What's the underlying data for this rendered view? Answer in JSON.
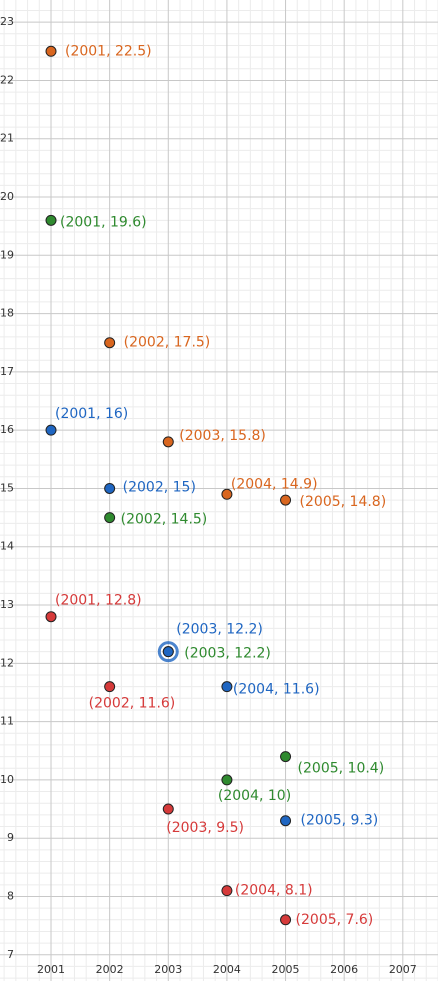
{
  "chart_data": {
    "type": "scatter",
    "xlim": [
      2000.13,
      2007.6
    ],
    "ylim": [
      6.55,
      23.38
    ],
    "xticks": [
      2001,
      2002,
      2003,
      2004,
      2005,
      2006,
      2007
    ],
    "yticks": [
      7,
      8,
      9,
      10,
      11,
      12,
      13,
      14,
      15,
      16,
      17,
      18,
      19,
      20,
      21,
      22,
      23
    ],
    "grid": true,
    "series": [
      {
        "name": "orange",
        "color": "#d9661f",
        "x": [
          2001,
          2002,
          2003,
          2004,
          2005
        ],
        "values": [
          22.5,
          17.5,
          15.8,
          14.9,
          14.8
        ],
        "value_labels": [
          "(2001, 22.5)",
          "(2002, 17.5)",
          "(2003, 15.8)",
          "(2004, 14.9)",
          "(2005, 14.8)"
        ]
      },
      {
        "name": "green",
        "color": "#2f8a2f",
        "x": [
          2001,
          2002,
          2003,
          2004,
          2005
        ],
        "values": [
          19.6,
          14.5,
          12.2,
          10,
          10.4
        ],
        "value_labels": [
          "(2001, 19.6)",
          "(2002, 14.5)",
          "(2003, 12.2)",
          "(2004, 10)",
          "(2005, 10.4)"
        ]
      },
      {
        "name": "blue",
        "color": "#1f66c2",
        "x": [
          2001,
          2002,
          2003,
          2004,
          2005
        ],
        "values": [
          16,
          15,
          12.2,
          11.6,
          9.3
        ],
        "value_labels": [
          "(2001, 16)",
          "(2002, 15)",
          "(2003, 12.2)",
          "(2004, 11.6)",
          "(2005, 9.3)"
        ]
      },
      {
        "name": "red",
        "color": "#d63a3a",
        "x": [
          2001,
          2002,
          2003,
          2004,
          2005
        ],
        "values": [
          12.8,
          11.6,
          9.5,
          8.1,
          7.6
        ],
        "value_labels": [
          "(2001, 12.8)",
          "(2002, 11.6)",
          "(2003, 9.5)",
          "(2004, 8.1)",
          "(2005, 7.6)"
        ]
      }
    ]
  }
}
